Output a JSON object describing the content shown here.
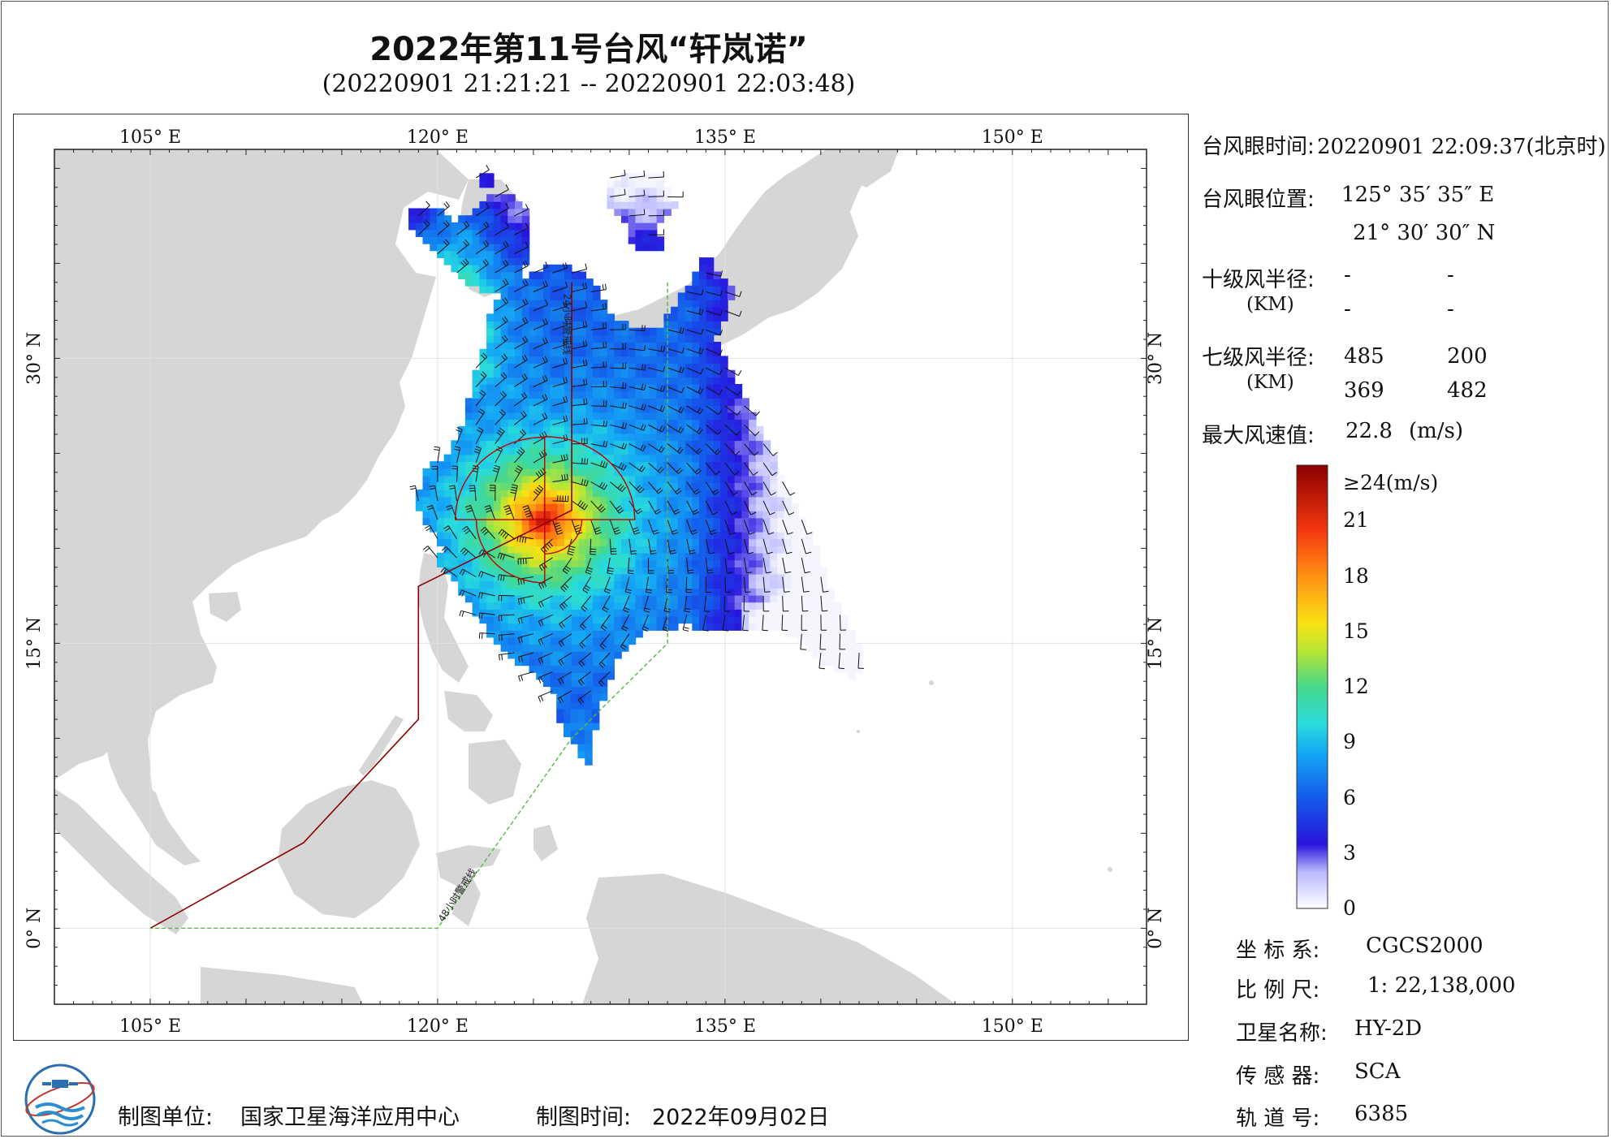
{
  "title": "2022年第11号台风“轩岚诺”",
  "subtitle": "(20220901 21:21:21 -- 20220901 22:03:48)",
  "map": {
    "lon_range": [
      100,
      157
    ],
    "lat_range": [
      -4,
      41
    ],
    "top_lon_labels": [
      "105° E",
      "120° E",
      "135° E",
      "150° E"
    ],
    "bottom_lon_labels": [
      "105° E",
      "120° E",
      "135° E",
      "150° E"
    ],
    "lat_labels": [
      "0° N",
      "15° N",
      "30° N"
    ],
    "warning_24h_label": "24小时警戒线",
    "warning_48h_label": "48小时警戒线",
    "eye_lon": 125.59,
    "eye_lat": 21.51,
    "colors": {
      "land": "#d6d6d6",
      "sea": "#ffffff",
      "warning_24h": "#8b0000",
      "warning_48h": "#55bb44",
      "radius_7": "#c00000"
    }
  },
  "info": {
    "eye_time_label": "台风眼时间:",
    "eye_time_value": "20220901 22:09:37(北京时)",
    "eye_pos_label": "台风眼位置:",
    "eye_lon_text": "125° 35′ 35″ E",
    "eye_lat_text": "21° 30′ 30″ N",
    "r10_label": "十级风半径:",
    "r10_unit": "(KM)",
    "r10_values": [
      "-",
      "-",
      "-",
      "-"
    ],
    "r7_label": "七级风半径:",
    "r7_unit": "(KM)",
    "r7_values": [
      "485",
      "200",
      "369",
      "482"
    ],
    "max_wind_label": "最大风速值:",
    "max_wind_value": "22.8",
    "max_wind_unit": "(m/s)"
  },
  "colorbar": {
    "top_label": "≥24(m/s)",
    "tick_labels": [
      "21",
      "18",
      "15",
      "12",
      "9",
      "6",
      "3",
      "0"
    ],
    "tick_values": [
      21,
      18,
      15,
      12,
      9,
      6,
      3,
      0
    ],
    "max": 24
  },
  "meta": {
    "crs_label": "坐 标 系:",
    "crs_value": "CGCS2000",
    "scale_label": "比 例 尺:",
    "scale_value": "1: 22,138,000",
    "sat_label": "卫星名称:",
    "sat_value": "HY-2D",
    "sensor_label": "传 感 器:",
    "sensor_value": "SCA",
    "orbit_label": "轨 道 号:",
    "orbit_value": "6385"
  },
  "footer": {
    "unit_label": "制图单位:",
    "unit_value": "国家卫星海洋应用中心",
    "time_label": "制图时间:",
    "time_value": "2022年09月02日"
  }
}
